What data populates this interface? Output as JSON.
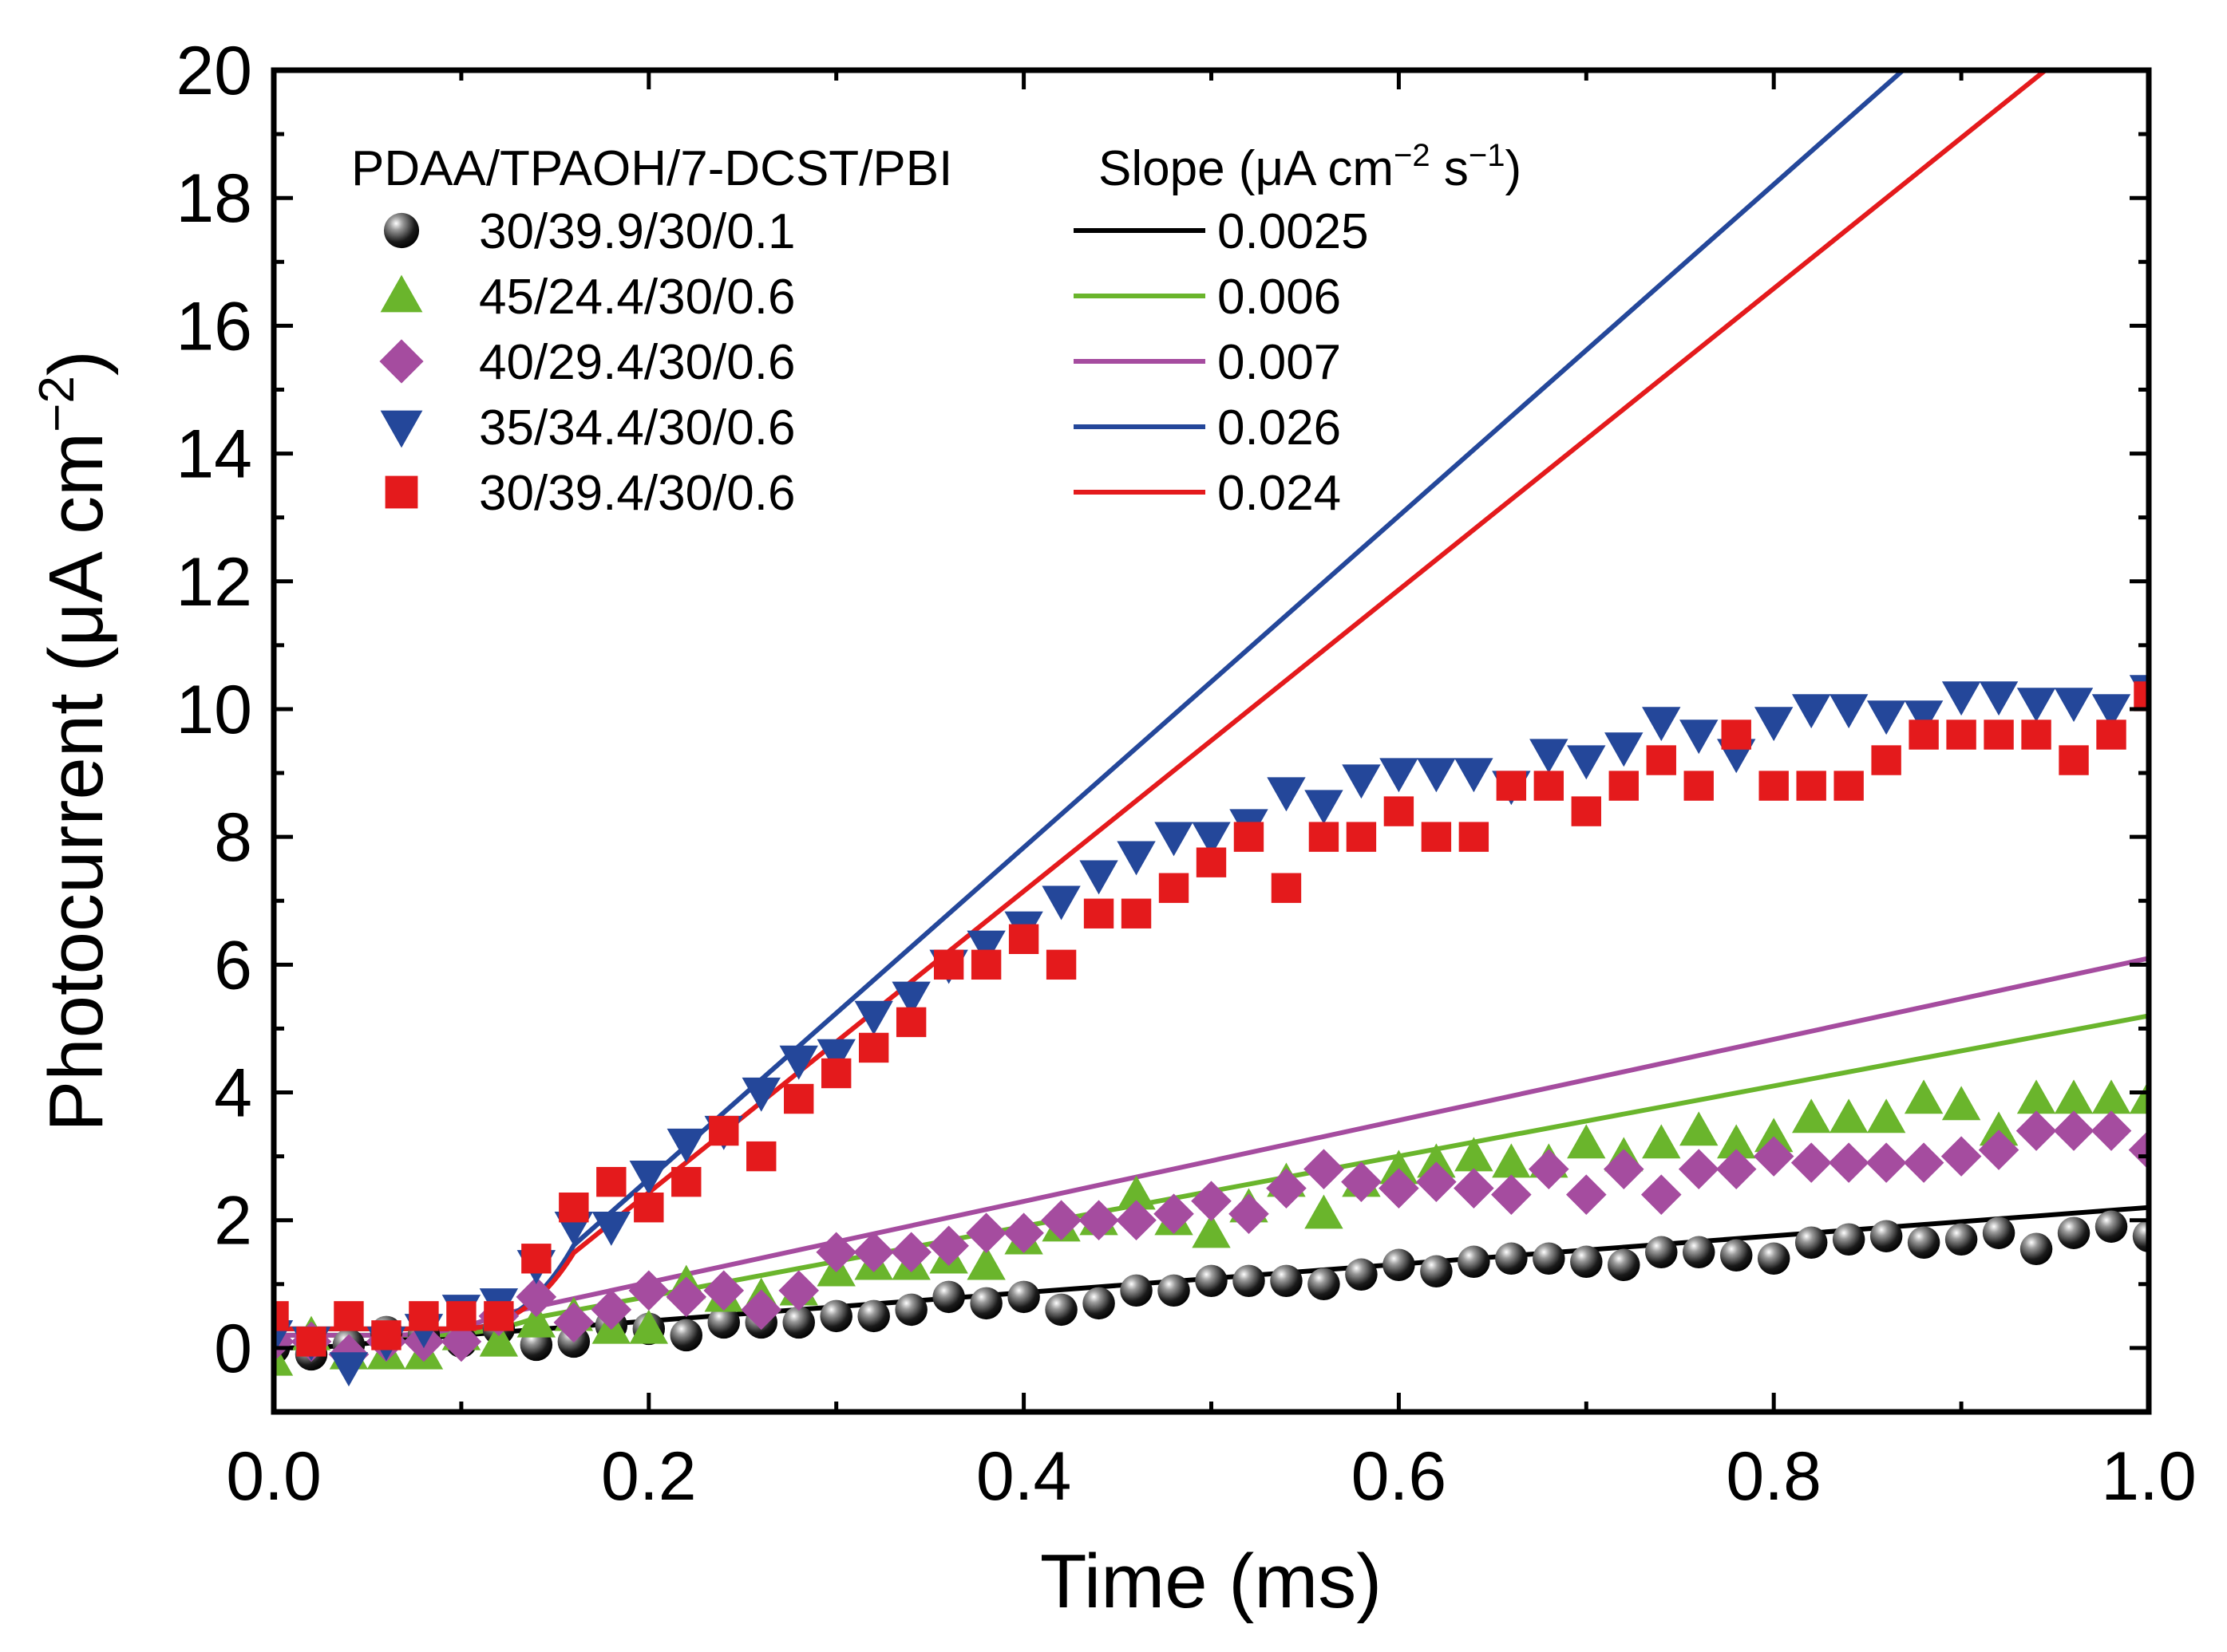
{
  "chart_data": {
    "type": "scatter",
    "title": "",
    "xlabel": "Time (ms)",
    "ylabel_main": "Photocurrent (μA cm",
    "ylabel_sup": "−2",
    "ylabel_close": ")",
    "xlim": [
      0.0,
      1.0
    ],
    "ylim": [
      -1,
      20
    ],
    "xticks": [
      0.0,
      0.2,
      0.4,
      0.6,
      0.8,
      1.0
    ],
    "xtick_labels": [
      "0.0",
      "0.2",
      "0.4",
      "0.6",
      "0.8",
      "1.0"
    ],
    "yticks": [
      0,
      2,
      4,
      6,
      8,
      10,
      12,
      14,
      16,
      18,
      20
    ],
    "ytick_labels": [
      "0",
      "2",
      "4",
      "6",
      "8",
      "10",
      "12",
      "14",
      "16",
      "18",
      "20"
    ],
    "legend": {
      "header_composition": "PDAA/TPAOH/7-DCST/PBI",
      "header_slope": "Slope (μA cm",
      "header_slope_sup1": "−2",
      "header_slope_mid": " s",
      "header_slope_sup2": "−1",
      "header_slope_close": ")",
      "placement": "top-left"
    },
    "series": [
      {
        "name": "30/39.9/30/0.1",
        "slope_label": "0.0025",
        "marker": "sphere",
        "color": "#000000",
        "fit": {
          "t0": 0.0,
          "y0": 0.0,
          "y1": 2.2
        },
        "x": [
          0.0,
          0.02,
          0.04,
          0.06,
          0.08,
          0.1,
          0.12,
          0.14,
          0.16,
          0.18,
          0.2,
          0.22,
          0.24,
          0.26,
          0.28,
          0.3,
          0.32,
          0.34,
          0.36,
          0.38,
          0.4,
          0.42,
          0.44,
          0.46,
          0.48,
          0.5,
          0.52,
          0.54,
          0.56,
          0.58,
          0.6,
          0.62,
          0.64,
          0.66,
          0.68,
          0.7,
          0.72,
          0.74,
          0.76,
          0.78,
          0.8,
          0.82,
          0.84,
          0.86,
          0.88,
          0.9,
          0.92,
          0.94,
          0.96,
          0.98,
          1.0
        ],
        "y": [
          0.0,
          -0.1,
          0.05,
          0.25,
          0.2,
          0.1,
          0.3,
          0.05,
          0.1,
          0.35,
          0.3,
          0.2,
          0.4,
          0.4,
          0.4,
          0.5,
          0.5,
          0.6,
          0.8,
          0.7,
          0.8,
          0.6,
          0.7,
          0.9,
          0.9,
          1.05,
          1.05,
          1.05,
          1.0,
          1.15,
          1.3,
          1.2,
          1.35,
          1.4,
          1.4,
          1.35,
          1.3,
          1.5,
          1.5,
          1.45,
          1.4,
          1.65,
          1.7,
          1.75,
          1.65,
          1.7,
          1.8,
          1.55,
          1.8,
          1.9,
          1.75
        ]
      },
      {
        "name": "45/24.4/30/0.6",
        "slope_label": "0.006",
        "marker": "triangle-up",
        "color": "#6ab52c",
        "fit": {
          "t0": 0.08,
          "y0": 0.2,
          "y1": 5.2
        },
        "x": [
          0.0,
          0.02,
          0.04,
          0.06,
          0.08,
          0.1,
          0.12,
          0.14,
          0.16,
          0.18,
          0.2,
          0.22,
          0.24,
          0.26,
          0.28,
          0.3,
          0.32,
          0.34,
          0.36,
          0.38,
          0.4,
          0.42,
          0.44,
          0.46,
          0.48,
          0.5,
          0.52,
          0.54,
          0.56,
          0.58,
          0.6,
          0.62,
          0.64,
          0.66,
          0.68,
          0.7,
          0.72,
          0.74,
          0.76,
          0.78,
          0.8,
          0.82,
          0.84,
          0.86,
          0.88,
          0.9,
          0.92,
          0.94,
          0.96,
          0.98,
          1.0
        ],
        "y": [
          -0.2,
          0.2,
          -0.1,
          -0.1,
          -0.1,
          0.2,
          0.1,
          0.4,
          0.5,
          0.3,
          0.3,
          1.0,
          0.8,
          0.8,
          0.9,
          1.2,
          1.3,
          1.3,
          1.4,
          1.3,
          1.7,
          1.9,
          2.0,
          2.4,
          2.0,
          1.8,
          2.2,
          2.6,
          2.1,
          2.6,
          2.8,
          2.9,
          3.0,
          2.9,
          2.9,
          3.2,
          3.0,
          3.2,
          3.4,
          3.2,
          3.3,
          3.6,
          3.6,
          3.6,
          3.9,
          3.8,
          3.4,
          3.9,
          3.9,
          3.9,
          3.9
        ]
      },
      {
        "name": "40/29.4/30/0.6",
        "slope_label": "0.007",
        "marker": "diamond",
        "color": "#a54c9f",
        "fit": {
          "t0": 0.06,
          "y0": 0.2,
          "y1": 6.1
        },
        "x": [
          0.0,
          0.02,
          0.04,
          0.06,
          0.08,
          0.1,
          0.12,
          0.14,
          0.16,
          0.18,
          0.2,
          0.22,
          0.24,
          0.26,
          0.28,
          0.3,
          0.32,
          0.34,
          0.36,
          0.38,
          0.4,
          0.42,
          0.44,
          0.46,
          0.48,
          0.5,
          0.52,
          0.54,
          0.56,
          0.58,
          0.6,
          0.62,
          0.64,
          0.66,
          0.68,
          0.7,
          0.72,
          0.74,
          0.76,
          0.78,
          0.8,
          0.82,
          0.84,
          0.86,
          0.88,
          0.9,
          0.92,
          0.94,
          0.96,
          0.98,
          1.0
        ],
        "y": [
          0.1,
          0.1,
          -0.1,
          0.1,
          0.1,
          0.1,
          0.5,
          0.8,
          0.4,
          0.6,
          0.9,
          0.8,
          0.9,
          0.6,
          0.9,
          1.5,
          1.5,
          1.5,
          1.6,
          1.8,
          1.8,
          2.0,
          2.0,
          2.0,
          2.1,
          2.3,
          2.1,
          2.5,
          2.8,
          2.6,
          2.5,
          2.6,
          2.5,
          2.4,
          2.8,
          2.4,
          2.8,
          2.4,
          2.8,
          2.8,
          3.0,
          2.9,
          2.9,
          2.9,
          2.9,
          3.0,
          3.1,
          3.4,
          3.4,
          3.4,
          3.1
        ]
      },
      {
        "name": "35/34.4/30/0.6",
        "slope_label": "0.026",
        "marker": "triangle-down",
        "color": "#24479a",
        "fit": {
          "t0": 0.1,
          "y0": 0.3,
          "y1": 23.4
        },
        "x": [
          0.0,
          0.02,
          0.04,
          0.06,
          0.08,
          0.1,
          0.12,
          0.14,
          0.16,
          0.18,
          0.2,
          0.22,
          0.24,
          0.26,
          0.28,
          0.3,
          0.32,
          0.34,
          0.36,
          0.38,
          0.4,
          0.42,
          0.44,
          0.46,
          0.48,
          0.5,
          0.52,
          0.54,
          0.56,
          0.58,
          0.6,
          0.62,
          0.64,
          0.66,
          0.68,
          0.7,
          0.72,
          0.74,
          0.76,
          0.78,
          0.8,
          0.82,
          0.84,
          0.86,
          0.88,
          0.9,
          0.92,
          0.94,
          0.96,
          0.98,
          1.0
        ],
        "y": [
          0.2,
          0.1,
          -0.3,
          0.1,
          0.3,
          0.6,
          0.7,
          1.3,
          1.9,
          1.9,
          2.7,
          3.2,
          3.4,
          4.0,
          4.5,
          4.6,
          5.2,
          5.5,
          6.0,
          6.3,
          6.6,
          7.0,
          7.4,
          7.7,
          8.0,
          8.0,
          8.2,
          8.7,
          8.5,
          8.9,
          9.0,
          9.0,
          9.0,
          8.8,
          9.3,
          9.2,
          9.4,
          9.8,
          9.6,
          9.3,
          9.8,
          10.0,
          10.0,
          9.9,
          9.9,
          10.2,
          10.2,
          10.1,
          10.1,
          10.0,
          10.3
        ]
      },
      {
        "name": "30/39.4/30/0.6",
        "slope_label": "0.024",
        "marker": "square",
        "color": "#e41a1c",
        "fit": {
          "t0": 0.1,
          "y0": 0.3,
          "y1": 21.3
        },
        "x": [
          0.0,
          0.02,
          0.04,
          0.06,
          0.08,
          0.1,
          0.12,
          0.14,
          0.16,
          0.18,
          0.2,
          0.22,
          0.24,
          0.26,
          0.28,
          0.3,
          0.32,
          0.34,
          0.36,
          0.38,
          0.4,
          0.42,
          0.44,
          0.46,
          0.48,
          0.5,
          0.52,
          0.54,
          0.56,
          0.58,
          0.6,
          0.62,
          0.64,
          0.66,
          0.68,
          0.7,
          0.72,
          0.74,
          0.76,
          0.78,
          0.8,
          0.82,
          0.84,
          0.86,
          0.88,
          0.9,
          0.92,
          0.94,
          0.96,
          0.98,
          1.0
        ],
        "y": [
          0.5,
          0.1,
          0.5,
          0.2,
          0.5,
          0.5,
          0.5,
          1.4,
          2.2,
          2.6,
          2.2,
          2.6,
          3.4,
          3.0,
          3.9,
          4.3,
          4.7,
          5.1,
          6.0,
          6.0,
          6.4,
          6.0,
          6.8,
          6.8,
          7.2,
          7.6,
          8.0,
          7.2,
          8.0,
          8.0,
          8.4,
          8.0,
          8.0,
          8.8,
          8.8,
          8.4,
          8.8,
          9.2,
          8.8,
          9.6,
          8.8,
          8.8,
          8.8,
          9.2,
          9.6,
          9.6,
          9.6,
          9.6,
          9.2,
          9.6,
          10.2
        ]
      }
    ]
  }
}
